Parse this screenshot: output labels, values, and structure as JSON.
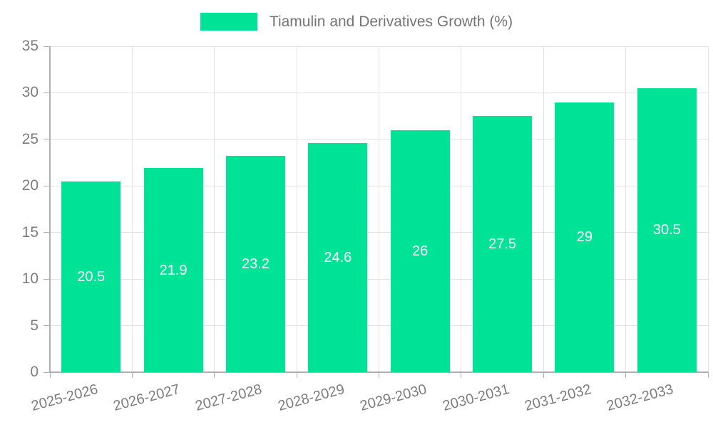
{
  "chart_data": {
    "type": "bar",
    "title": "Tiamulin and Derivatives Growth (%)",
    "categories": [
      "2025-2026",
      "2026-2027",
      "2027-2028",
      "2028-2029",
      "2029-2030",
      "2030-2031",
      "2031-2032",
      "2032-2033"
    ],
    "values": [
      20.5,
      21.9,
      23.2,
      24.6,
      26,
      27.5,
      29,
      30.5
    ],
    "value_labels": [
      "20.5",
      "21.9",
      "23.2",
      "24.6",
      "26",
      "27.5",
      "29",
      "30.5"
    ],
    "xlabel": "",
    "ylabel": "",
    "ylim": [
      0,
      35
    ],
    "yticks": [
      0,
      5,
      10,
      15,
      20,
      25,
      30,
      35
    ],
    "grid": true,
    "legend_position": "top-center",
    "colors": {
      "bar": "#00E396",
      "value_label": "#ffffff",
      "grid": "#e3e3e3",
      "axis_line": "#b0b0b0",
      "tick": "#b0b0b0",
      "axis_text": "#7d7d7d",
      "legend_text": "#757575",
      "background": "#ffffff"
    }
  }
}
